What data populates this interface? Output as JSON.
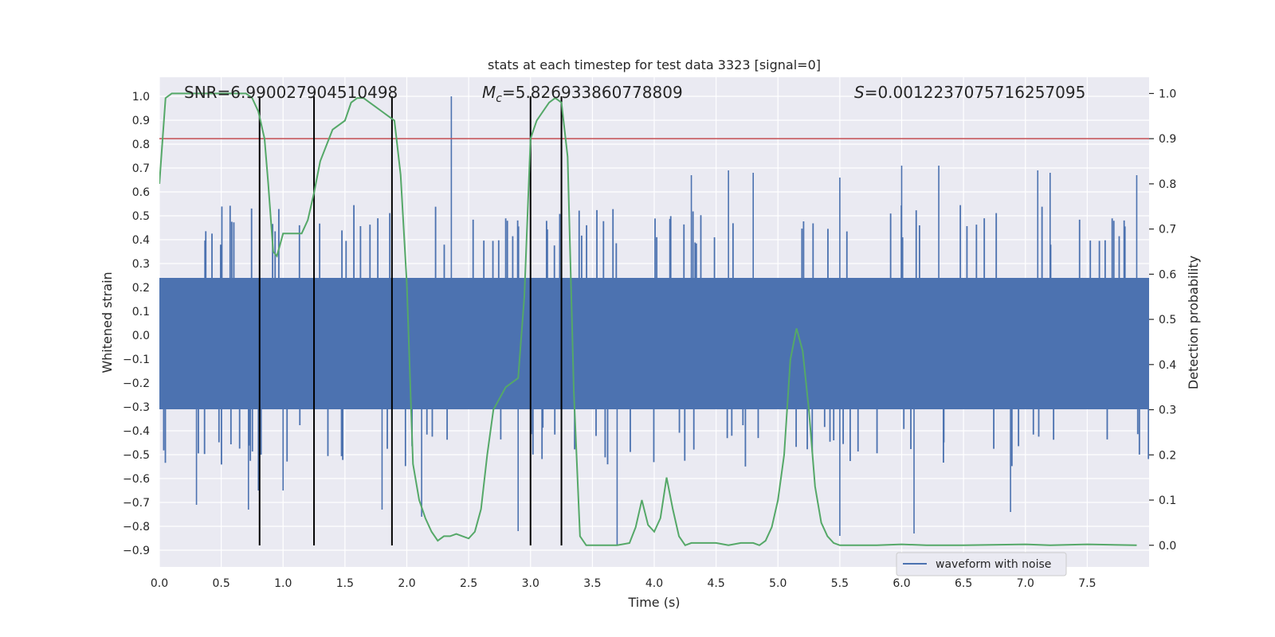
{
  "chart_data": {
    "type": "line",
    "title": "stats at each timestep for test data 3323 [signal=0]",
    "xlabel": "Time (s)",
    "ylabel_left": "Whitened strain",
    "ylabel_right": "Detection probability",
    "xlim": [
      0.0,
      8.0
    ],
    "ylim_left": [
      -0.97,
      1.08
    ],
    "ylim_right": [
      -0.048,
      1.036
    ],
    "grid": true,
    "x_ticks": [
      "0.0",
      "0.5",
      "1.0",
      "1.5",
      "2.0",
      "2.5",
      "3.0",
      "3.5",
      "4.0",
      "4.5",
      "5.0",
      "5.5",
      "6.0",
      "6.5",
      "7.0",
      "7.5"
    ],
    "x_tick_values": [
      0.0,
      0.5,
      1.0,
      1.5,
      2.0,
      2.5,
      3.0,
      3.5,
      4.0,
      4.5,
      5.0,
      5.5,
      6.0,
      6.5,
      7.0,
      7.5
    ],
    "y_left_ticks": [
      "1.0",
      "0.9",
      "0.8",
      "0.7",
      "0.6",
      "0.5",
      "0.4",
      "0.3",
      "0.2",
      "0.1",
      "0.0",
      "−0.1",
      "−0.2",
      "−0.3",
      "−0.4",
      "−0.5",
      "−0.6",
      "−0.7",
      "−0.8",
      "−0.9"
    ],
    "y_left_tick_values": [
      1.0,
      0.9,
      0.8,
      0.7,
      0.6,
      0.5,
      0.4,
      0.3,
      0.2,
      0.1,
      0.0,
      -0.1,
      -0.2,
      -0.3,
      -0.4,
      -0.5,
      -0.6,
      -0.7,
      -0.8,
      -0.9
    ],
    "y_right_ticks": [
      "1.0",
      "0.9",
      "0.8",
      "0.7",
      "0.6",
      "0.5",
      "0.4",
      "0.3",
      "0.2",
      "0.1",
      "0.0"
    ],
    "y_right_tick_values": [
      1.0,
      0.9,
      0.8,
      0.7,
      0.6,
      0.5,
      0.4,
      0.3,
      0.2,
      0.1,
      0.0
    ],
    "annotations": {
      "snr": "SNR=6.990027904510498",
      "mc": "=5.826933860778809",
      "mc_symbol": "M",
      "mc_subscript": "c",
      "s": "=0.0012237075716257095",
      "s_symbol": "S"
    },
    "legend": {
      "label": "waveform with noise",
      "placement": "lower-right"
    },
    "colors": {
      "waveform": "#4c72b0",
      "probability": "#55a868",
      "threshold": "#c44e52",
      "markers": "#000000",
      "axes_bg": "#eaeaf2",
      "grid": "#ffffff"
    },
    "series": [
      {
        "name": "waveform with noise",
        "axis": "left",
        "kind": "noise",
        "t_range": [
          0.0,
          8.0
        ],
        "typical_amplitude": 0.27,
        "envelope_amplitude": 0.5,
        "spikes": [
          {
            "t": 2.36,
            "value": 1.0
          },
          {
            "t": 0.8,
            "value": -0.65
          },
          {
            "t": 1.0,
            "value": -0.65
          },
          {
            "t": 0.3,
            "value": -0.71
          },
          {
            "t": 0.72,
            "value": -0.73
          },
          {
            "t": 1.8,
            "value": -0.73
          },
          {
            "t": 2.12,
            "value": -0.76
          },
          {
            "t": 2.9,
            "value": -0.82
          },
          {
            "t": 3.7,
            "value": -0.88
          },
          {
            "t": 5.5,
            "value": -0.84
          },
          {
            "t": 6.1,
            "value": -0.83
          },
          {
            "t": 6.88,
            "value": -0.74
          },
          {
            "t": 4.3,
            "value": 0.67
          },
          {
            "t": 4.6,
            "value": 0.69
          },
          {
            "t": 4.8,
            "value": 0.68
          },
          {
            "t": 5.5,
            "value": 0.66
          },
          {
            "t": 6.0,
            "value": 0.71
          },
          {
            "t": 6.3,
            "value": 0.71
          },
          {
            "t": 7.1,
            "value": 0.69
          },
          {
            "t": 7.2,
            "value": 0.68
          },
          {
            "t": 7.9,
            "value": 0.67
          }
        ]
      },
      {
        "name": "detection probability",
        "axis": "right",
        "x": [
          0.0,
          0.05,
          0.1,
          0.2,
          0.3,
          0.4,
          0.5,
          0.6,
          0.7,
          0.75,
          0.8,
          0.85,
          0.88,
          0.92,
          0.95,
          1.0,
          1.05,
          1.1,
          1.15,
          1.2,
          1.25,
          1.3,
          1.4,
          1.5,
          1.55,
          1.6,
          1.65,
          1.7,
          1.75,
          1.8,
          1.85,
          1.9,
          1.95,
          2.0,
          2.05,
          2.1,
          2.15,
          2.2,
          2.25,
          2.3,
          2.35,
          2.4,
          2.45,
          2.5,
          2.55,
          2.6,
          2.65,
          2.7,
          2.8,
          2.9,
          2.95,
          3.0,
          3.05,
          3.1,
          3.15,
          3.2,
          3.25,
          3.3,
          3.35,
          3.4,
          3.45,
          3.5,
          3.6,
          3.7,
          3.8,
          3.85,
          3.9,
          3.95,
          4.0,
          4.05,
          4.1,
          4.15,
          4.2,
          4.25,
          4.3,
          4.4,
          4.5,
          4.6,
          4.7,
          4.8,
          4.85,
          4.9,
          4.95,
          5.0,
          5.05,
          5.1,
          5.15,
          5.2,
          5.25,
          5.3,
          5.35,
          5.4,
          5.45,
          5.5,
          5.6,
          5.8,
          6.0,
          6.2,
          6.5,
          7.0,
          7.2,
          7.5,
          7.9
        ],
        "values": [
          0.8,
          0.99,
          1.0,
          1.0,
          1.0,
          1.0,
          1.0,
          1.0,
          1.0,
          0.99,
          0.96,
          0.9,
          0.8,
          0.65,
          0.64,
          0.69,
          0.69,
          0.69,
          0.69,
          0.72,
          0.78,
          0.85,
          0.92,
          0.94,
          0.98,
          0.99,
          0.99,
          0.98,
          0.97,
          0.96,
          0.95,
          0.94,
          0.82,
          0.58,
          0.18,
          0.1,
          0.06,
          0.03,
          0.01,
          0.02,
          0.02,
          0.025,
          0.02,
          0.015,
          0.03,
          0.08,
          0.2,
          0.3,
          0.35,
          0.37,
          0.55,
          0.9,
          0.94,
          0.96,
          0.98,
          0.99,
          0.98,
          0.86,
          0.34,
          0.02,
          0.0,
          0.0,
          0.0,
          0.0,
          0.005,
          0.04,
          0.1,
          0.045,
          0.03,
          0.06,
          0.15,
          0.08,
          0.02,
          0.0,
          0.005,
          0.005,
          0.005,
          0.0,
          0.005,
          0.005,
          0.0,
          0.01,
          0.04,
          0.1,
          0.2,
          0.41,
          0.48,
          0.43,
          0.3,
          0.13,
          0.05,
          0.02,
          0.005,
          0.0,
          0.0,
          0.0,
          0.002,
          0.0,
          0.0,
          0.002,
          0.0,
          0.002,
          0.0
        ]
      },
      {
        "name": "threshold",
        "axis": "right",
        "kind": "hline",
        "value": 0.9
      }
    ],
    "vertical_markers": [
      0.81,
      1.25,
      1.88,
      3.0,
      3.25
    ],
    "vertical_marker_range": [
      -0.88,
      1.0
    ]
  }
}
